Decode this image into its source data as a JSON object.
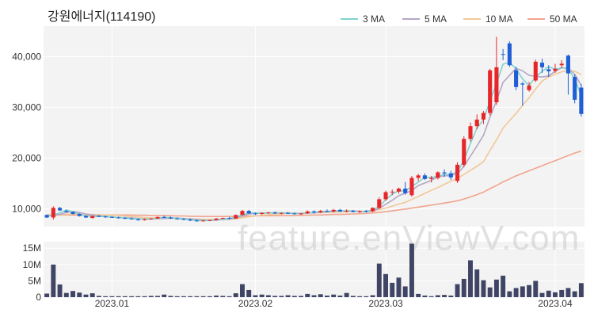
{
  "chart_data": {
    "type": "candlestick",
    "title": "강원에너지(114190)",
    "watermark": "feature.enViewV.com",
    "price_ylim": [
      6500,
      46000
    ],
    "price_ticks": [
      {
        "value": 10000,
        "label": "10,000"
      },
      {
        "value": 20000,
        "label": "20,000"
      },
      {
        "value": 30000,
        "label": "30,000"
      },
      {
        "value": 40000,
        "label": "40,000"
      }
    ],
    "volume_ylim": [
      0,
      17000000
    ],
    "volume_ticks": [
      {
        "value": 0,
        "label": "0"
      },
      {
        "value": 5000000,
        "label": "5M"
      },
      {
        "value": 10000000,
        "label": "10M"
      },
      {
        "value": 15000000,
        "label": "15M"
      }
    ],
    "x_labels": [
      {
        "index": 10,
        "label": "2023.01"
      },
      {
        "index": 32,
        "label": "2023.02"
      },
      {
        "index": 52,
        "label": "2023.03"
      },
      {
        "index": 78,
        "label": "2023.04"
      }
    ],
    "legend": [
      {
        "name": "3 MA",
        "color": "#7fd3d0"
      },
      {
        "name": "5 MA",
        "color": "#b4a7c6"
      },
      {
        "name": "10 MA",
        "color": "#f1c896"
      },
      {
        "name": "50 MA",
        "color": "#f2a48e"
      }
    ],
    "colors": {
      "up": "#e8262a",
      "down": "#1f5fd6",
      "volume": "#404565",
      "plot_bg": "#f3f3f3"
    },
    "ohlc": [
      [
        8800,
        8900,
        8200,
        8300
      ],
      [
        8300,
        10500,
        7900,
        10200
      ],
      [
        10200,
        10400,
        9600,
        9700
      ],
      [
        9600,
        9800,
        9300,
        9400
      ],
      [
        9400,
        9500,
        8900,
        9000
      ],
      [
        9000,
        9100,
        8500,
        8600
      ],
      [
        8600,
        8700,
        8200,
        8300
      ],
      [
        8200,
        8700,
        8100,
        8600
      ],
      [
        8600,
        8800,
        8400,
        8500
      ],
      [
        8500,
        8700,
        8200,
        8400
      ],
      [
        8400,
        8600,
        8200,
        8300
      ],
      [
        8300,
        8500,
        8100,
        8200
      ],
      [
        8200,
        8400,
        8000,
        8100
      ],
      [
        8100,
        8300,
        7900,
        8000
      ],
      [
        7900,
        8200,
        7700,
        7800
      ],
      [
        7800,
        8100,
        7700,
        8000
      ],
      [
        8000,
        8200,
        7900,
        8100
      ],
      [
        8100,
        8500,
        8000,
        8400
      ],
      [
        8400,
        8700,
        8200,
        8300
      ],
      [
        8300,
        8500,
        8000,
        8100
      ],
      [
        8100,
        8300,
        7900,
        8000
      ],
      [
        8000,
        8200,
        7800,
        7900
      ],
      [
        7900,
        8100,
        7600,
        7700
      ],
      [
        7700,
        7900,
        7500,
        7600
      ],
      [
        7600,
        7800,
        7500,
        7700
      ],
      [
        7700,
        7900,
        7600,
        7800
      ],
      [
        7800,
        8200,
        7700,
        8100
      ],
      [
        8100,
        8300,
        8000,
        8200
      ],
      [
        8200,
        8400,
        8000,
        8100
      ],
      [
        8100,
        8900,
        8000,
        8800
      ],
      [
        8800,
        9800,
        8700,
        9600
      ],
      [
        9600,
        9800,
        9000,
        9100
      ],
      [
        9100,
        9300,
        8800,
        9000
      ],
      [
        9000,
        9300,
        8800,
        9200
      ],
      [
        9200,
        9400,
        9000,
        9300
      ],
      [
        9300,
        9500,
        9000,
        9100
      ],
      [
        9100,
        9300,
        8900,
        9200
      ],
      [
        9200,
        9400,
        9000,
        9100
      ],
      [
        9100,
        9300,
        8900,
        9000
      ],
      [
        9000,
        9200,
        8800,
        9100
      ],
      [
        9100,
        9700,
        9000,
        9500
      ],
      [
        9500,
        9700,
        9100,
        9300
      ],
      [
        9300,
        9800,
        9200,
        9600
      ],
      [
        9600,
        9900,
        9400,
        9500
      ],
      [
        9500,
        10000,
        9300,
        9800
      ],
      [
        9800,
        10000,
        9400,
        9500
      ],
      [
        9500,
        9900,
        9300,
        9600
      ],
      [
        9600,
        9800,
        9300,
        9400
      ],
      [
        9400,
        9700,
        9200,
        9600
      ],
      [
        9600,
        9800,
        9300,
        9500
      ],
      [
        9500,
        10300,
        9400,
        10200
      ],
      [
        10200,
        12300,
        10000,
        11900
      ],
      [
        11900,
        13600,
        11600,
        13300
      ],
      [
        13300,
        13800,
        12700,
        13400
      ],
      [
        13400,
        14200,
        13000,
        14000
      ],
      [
        14000,
        15300,
        12800,
        13100
      ],
      [
        12700,
        16500,
        12400,
        16100
      ],
      [
        16100,
        16900,
        15500,
        16600
      ],
      [
        16600,
        17000,
        15700,
        15900
      ],
      [
        15900,
        16500,
        15200,
        16100
      ],
      [
        16100,
        17400,
        15800,
        17200
      ],
      [
        17200,
        17800,
        16300,
        17000
      ],
      [
        17000,
        17500,
        15700,
        16200
      ],
      [
        15500,
        19200,
        15100,
        18700
      ],
      [
        18700,
        24300,
        18200,
        23800
      ],
      [
        23800,
        27000,
        23300,
        26300
      ],
      [
        26300,
        28600,
        25700,
        27600
      ],
      [
        27600,
        29300,
        26700,
        28900
      ],
      [
        28900,
        37600,
        28400,
        37300
      ],
      [
        31000,
        43900,
        30500,
        37900
      ],
      [
        40500,
        41500,
        39300,
        40400
      ],
      [
        42600,
        43000,
        38000,
        38300
      ],
      [
        37300,
        38000,
        33400,
        34000
      ],
      [
        34700,
        35000,
        30300,
        34500
      ],
      [
        33400,
        35000,
        33100,
        34300
      ],
      [
        35300,
        39400,
        35000,
        39000
      ],
      [
        38800,
        39600,
        36800,
        37900
      ],
      [
        37500,
        38300,
        36000,
        37100
      ],
      [
        37200,
        38600,
        36800,
        37600
      ],
      [
        38300,
        39300,
        37700,
        38600
      ],
      [
        40200,
        40400,
        32500,
        36700
      ],
      [
        36000,
        36500,
        30800,
        31500
      ],
      [
        33900,
        34600,
        28200,
        28700
      ]
    ],
    "volume": [
      1100000,
      10000000,
      3900000,
      1300000,
      1900000,
      1400000,
      800000,
      1200000,
      400000,
      300000,
      300000,
      300000,
      300000,
      300000,
      300000,
      300000,
      400000,
      400000,
      800000,
      400000,
      300000,
      300000,
      300000,
      300000,
      300000,
      300000,
      500000,
      400000,
      300000,
      1200000,
      4000000,
      2200000,
      600000,
      800000,
      600000,
      400000,
      400000,
      600000,
      400000,
      400000,
      1000000,
      600000,
      900000,
      500000,
      800000,
      500000,
      1300000,
      400000,
      300000,
      300000,
      600000,
      10300000,
      7100000,
      4400000,
      6000000,
      3300000,
      16400000,
      1000000,
      500000,
      300000,
      600000,
      700000,
      500000,
      4000000,
      5600000,
      11300000,
      8500000,
      5200000,
      3000000,
      5400000,
      6600000,
      1800000,
      2800000,
      3300000,
      3700000,
      5000000,
      1300000,
      2000000,
      1500000,
      2200000,
      2800000,
      1800000,
      4300000
    ],
    "ma3": [
      8500,
      8800,
      9200,
      9800,
      9400,
      9000,
      8600,
      8500,
      8500,
      8500,
      8400,
      8300,
      8200,
      8100,
      8000,
      8000,
      8000,
      8200,
      8300,
      8300,
      8100,
      8000,
      7900,
      7700,
      7700,
      7700,
      7900,
      8000,
      8100,
      8400,
      8800,
      9200,
      9200,
      9100,
      9200,
      9200,
      9200,
      9100,
      9100,
      9100,
      9200,
      9300,
      9500,
      9500,
      9600,
      9600,
      9600,
      9500,
      9500,
      9500,
      9800,
      10500,
      11800,
      12900,
      13600,
      13500,
      14400,
      15300,
      16200,
      16200,
      16400,
      16800,
      16800,
      17300,
      19600,
      22900,
      25900,
      27600,
      31300,
      34700,
      38500,
      38900,
      37600,
      35600,
      34300,
      36000,
      37100,
      38000,
      37500,
      37800,
      37600,
      35600,
      32300
    ],
    "ma5": [
      8600,
      8700,
      8900,
      9300,
      9500,
      9300,
      9000,
      8800,
      8600,
      8500,
      8400,
      8300,
      8300,
      8200,
      8100,
      8000,
      8000,
      8100,
      8100,
      8200,
      8200,
      8100,
      8000,
      7900,
      7800,
      7700,
      7800,
      7900,
      8000,
      8200,
      8600,
      9000,
      9100,
      9200,
      9200,
      9200,
      9200,
      9200,
      9100,
      9100,
      9200,
      9200,
      9400,
      9400,
      9500,
      9600,
      9600,
      9600,
      9500,
      9500,
      9600,
      10100,
      10900,
      11700,
      12600,
      13100,
      13600,
      14600,
      15100,
      15600,
      16300,
      16500,
      16600,
      16900,
      18400,
      20400,
      22400,
      24500,
      28100,
      31300,
      34900,
      36300,
      37700,
      37200,
      36300,
      36100,
      36000,
      36200,
      37100,
      37800,
      37700,
      36500,
      34300
    ],
    "ma10": [
      8700,
      8750,
      8800,
      8900,
      9000,
      9000,
      8950,
      8900,
      8850,
      8800,
      8750,
      8700,
      8600,
      8500,
      8400,
      8300,
      8200,
      8200,
      8200,
      8150,
      8100,
      8100,
      8050,
      8000,
      7950,
      7900,
      7900,
      7900,
      7950,
      8050,
      8250,
      8450,
      8600,
      8750,
      8850,
      8950,
      9050,
      9100,
      9150,
      9150,
      9200,
      9200,
      9250,
      9300,
      9350,
      9400,
      9450,
      9500,
      9500,
      9550,
      9600,
      9850,
      10150,
      10550,
      10950,
      11300,
      11850,
      12450,
      13050,
      13650,
      14200,
      14850,
      15450,
      16000,
      16800,
      17600,
      18400,
      19300,
      21500,
      23600,
      25900,
      27400,
      28800,
      30400,
      31900,
      33600,
      35200,
      36000,
      36500,
      37000,
      37300,
      37100,
      36500
    ],
    "ma50": [
      8800,
      8800,
      8800,
      8800,
      8800,
      8800,
      8800,
      8800,
      8800,
      8800,
      8800,
      8800,
      8800,
      8800,
      8750,
      8750,
      8700,
      8700,
      8650,
      8650,
      8600,
      8600,
      8550,
      8550,
      8500,
      8500,
      8500,
      8500,
      8500,
      8550,
      8550,
      8600,
      8600,
      8650,
      8650,
      8650,
      8700,
      8700,
      8700,
      8750,
      8750,
      8800,
      8800,
      8850,
      8900,
      8900,
      8950,
      9000,
      9050,
      9100,
      9200,
      9300,
      9450,
      9600,
      9800,
      9950,
      10150,
      10350,
      10550,
      10750,
      10950,
      11150,
      11350,
      11600,
      11950,
      12350,
      12800,
      13300,
      14000,
      14600,
      15300,
      15900,
      16500,
      17000,
      17500,
      18000,
      18500,
      19000,
      19500,
      20000,
      20500,
      21000,
      21400
    ]
  }
}
